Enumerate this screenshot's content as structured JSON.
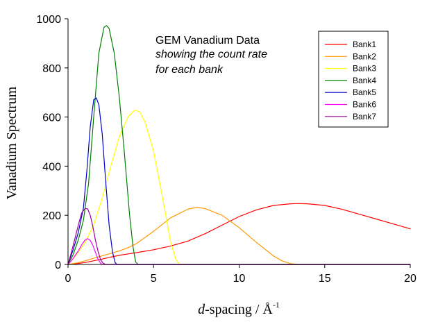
{
  "chart_data": {
    "type": "line",
    "title": "",
    "annotation": {
      "line1": "GEM Vanadium Data",
      "line2": "showing the count rate",
      "line3": "for each bank"
    },
    "xlabel": {
      "italic": "d",
      "rest": "-spacing / Å",
      "sup": "-1"
    },
    "ylabel": "Vanadium Spectrum",
    "xlim": [
      0,
      20
    ],
    "ylim": [
      0,
      1000
    ],
    "xticks": [
      0,
      5,
      10,
      15,
      20
    ],
    "yticks": [
      0,
      200,
      400,
      600,
      800,
      1000
    ],
    "grid": false,
    "legend_position": "top-right",
    "series": [
      {
        "name": "Bank1",
        "color": "#ff0000",
        "x": [
          0,
          0.5,
          1,
          1.5,
          2,
          2.5,
          3,
          3.5,
          4,
          5,
          6,
          7,
          8,
          9,
          10,
          11,
          12,
          13,
          13.5,
          14,
          15,
          16,
          17,
          18,
          19,
          20
        ],
        "y": [
          0,
          3,
          8,
          15,
          22,
          30,
          37,
          43,
          48,
          60,
          75,
          95,
          125,
          160,
          195,
          222,
          240,
          247,
          248,
          247,
          240,
          225,
          205,
          185,
          165,
          145
        ]
      },
      {
        "name": "Bank2",
        "color": "#ff9900",
        "x": [
          0,
          0.5,
          1,
          1.5,
          2,
          2.5,
          3,
          3.5,
          4,
          5,
          6,
          7,
          7.5,
          8,
          9,
          10,
          11,
          12,
          12.5,
          13,
          13.5,
          14,
          20
        ],
        "y": [
          0,
          6,
          15,
          25,
          35,
          45,
          55,
          68,
          85,
          135,
          190,
          225,
          232,
          228,
          200,
          150,
          90,
          35,
          15,
          3,
          0,
          0,
          0
        ]
      },
      {
        "name": "Bank3",
        "color": "#ffff00",
        "x": [
          0,
          0.5,
          1,
          1.5,
          2,
          2.5,
          3,
          3.5,
          3.9,
          4.2,
          4.5,
          5,
          5.5,
          6,
          6.3,
          6.5,
          7,
          20
        ],
        "y": [
          0,
          40,
          90,
          160,
          270,
          400,
          520,
          600,
          628,
          620,
          580,
          460,
          280,
          90,
          20,
          0,
          0,
          0
        ]
      },
      {
        "name": "Bank4",
        "color": "#008000",
        "x": [
          0,
          0.3,
          0.6,
          0.9,
          1.2,
          1.5,
          1.8,
          2.1,
          2.25,
          2.4,
          2.7,
          3.0,
          3.3,
          3.6,
          3.8,
          3.95,
          4.1,
          20
        ],
        "y": [
          0,
          40,
          100,
          180,
          330,
          600,
          860,
          965,
          972,
          960,
          860,
          680,
          450,
          200,
          70,
          10,
          0,
          0
        ]
      },
      {
        "name": "Bank5",
        "color": "#0000cc",
        "x": [
          0,
          0.3,
          0.6,
          0.9,
          1.1,
          1.3,
          1.5,
          1.65,
          1.8,
          2.0,
          2.2,
          2.4,
          2.6,
          2.75,
          2.85,
          20
        ],
        "y": [
          0,
          60,
          130,
          230,
          380,
          560,
          670,
          678,
          650,
          530,
          340,
          160,
          50,
          8,
          0,
          0
        ]
      },
      {
        "name": "Bank6",
        "color": "#ff00ff",
        "x": [
          0,
          0.2,
          0.4,
          0.6,
          0.8,
          1.0,
          1.15,
          1.3,
          1.45,
          1.6,
          1.75,
          1.9,
          2.0,
          20
        ],
        "y": [
          0,
          15,
          35,
          55,
          80,
          100,
          105,
          98,
          78,
          50,
          22,
          5,
          0,
          0
        ]
      },
      {
        "name": "Bank7",
        "color": "#990099",
        "x": [
          0,
          0.2,
          0.4,
          0.6,
          0.8,
          1.0,
          1.15,
          1.3,
          1.45,
          1.6,
          1.75,
          1.9,
          2.05,
          2.2,
          20
        ],
        "y": [
          0,
          50,
          105,
          160,
          210,
          228,
          226,
          200,
          155,
          100,
          55,
          20,
          5,
          0,
          0
        ]
      }
    ]
  }
}
